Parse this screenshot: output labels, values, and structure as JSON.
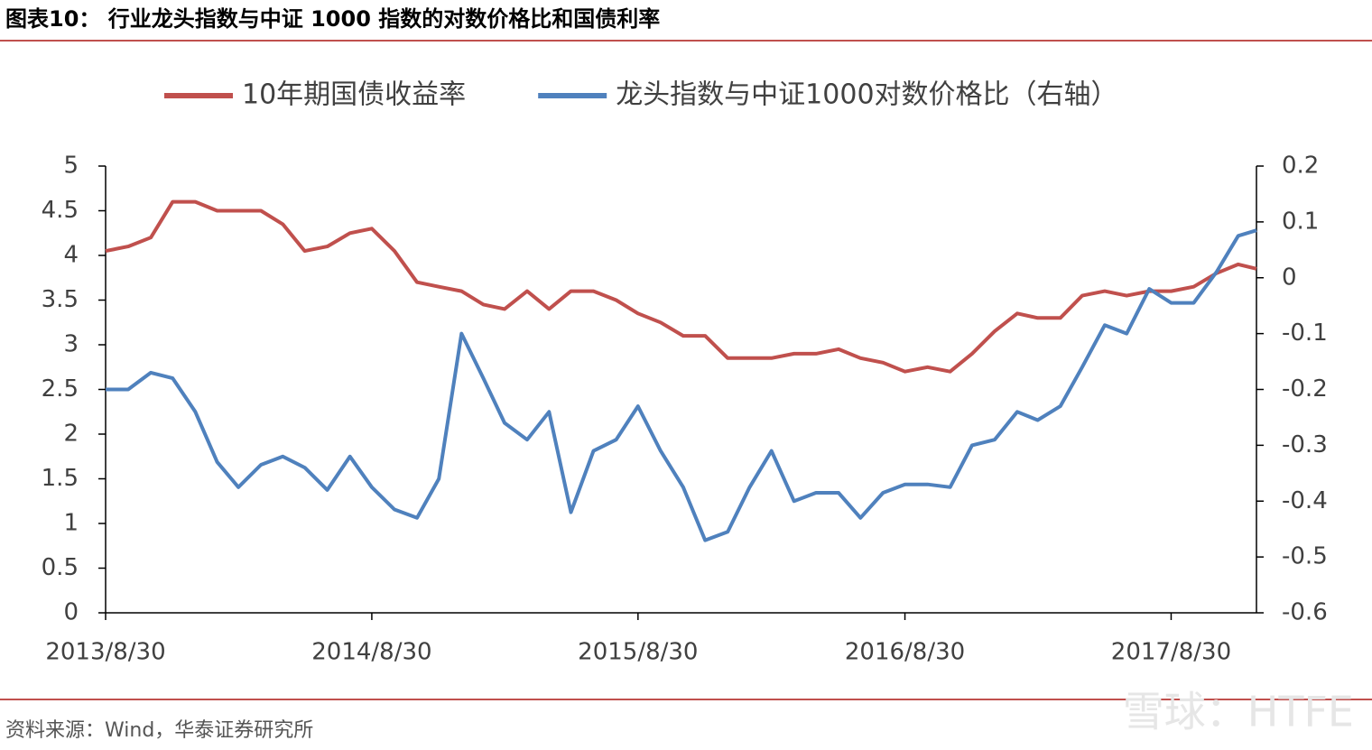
{
  "header": {
    "title": "图表10：  行业龙头指数与中证 1000 指数的对数价格比和国债利率"
  },
  "chart_data": {
    "type": "line",
    "x": [
      "2013/8/30",
      "2013/9/30",
      "2013/10/31",
      "2013/11/30",
      "2013/12/31",
      "2014/1/30",
      "2014/2/28",
      "2014/3/31",
      "2014/4/30",
      "2014/5/30",
      "2014/6/30",
      "2014/7/31",
      "2014/8/30",
      "2014/9/30",
      "2014/10/31",
      "2014/11/30",
      "2014/12/31",
      "2015/1/30",
      "2015/2/28",
      "2015/3/31",
      "2015/4/30",
      "2015/5/30",
      "2015/6/30",
      "2015/7/31",
      "2015/8/30",
      "2015/9/30",
      "2015/10/31",
      "2015/11/30",
      "2015/12/31",
      "2016/1/30",
      "2016/2/29",
      "2016/3/31",
      "2016/4/30",
      "2016/5/31",
      "2016/6/30",
      "2016/7/31",
      "2016/8/30",
      "2016/9/30",
      "2016/10/31",
      "2016/11/30",
      "2016/12/31",
      "2017/1/31",
      "2017/2/28",
      "2017/3/31",
      "2017/4/30",
      "2017/5/31",
      "2017/6/30",
      "2017/7/31",
      "2017/8/30",
      "2017/9/30",
      "2017/10/31",
      "2017/11/30",
      "2017/12/25"
    ],
    "series": [
      {
        "name": "10年期国债收益率",
        "color": "#c0504d",
        "axis": "y",
        "values": [
          4.05,
          4.1,
          4.2,
          4.6,
          4.6,
          4.5,
          4.5,
          4.5,
          4.35,
          4.05,
          4.1,
          4.25,
          4.3,
          4.05,
          3.7,
          3.65,
          3.6,
          3.45,
          3.4,
          3.6,
          3.4,
          3.6,
          3.6,
          3.5,
          3.35,
          3.25,
          3.1,
          3.1,
          2.85,
          2.85,
          2.85,
          2.9,
          2.9,
          2.95,
          2.85,
          2.8,
          2.7,
          2.75,
          2.7,
          2.9,
          3.15,
          3.35,
          3.3,
          3.3,
          3.55,
          3.6,
          3.55,
          3.6,
          3.6,
          3.65,
          3.8,
          3.9,
          3.85
        ]
      },
      {
        "name": "龙头指数与中证1000对数价格比（右轴）",
        "color": "#4f81bd",
        "axis": "y2",
        "values": [
          -0.2,
          -0.2,
          -0.17,
          -0.18,
          -0.24,
          -0.33,
          -0.375,
          -0.335,
          -0.32,
          -0.34,
          -0.38,
          -0.32,
          -0.375,
          -0.415,
          -0.43,
          -0.36,
          -0.1,
          -0.18,
          -0.26,
          -0.29,
          -0.24,
          -0.42,
          -0.31,
          -0.29,
          -0.23,
          -0.31,
          -0.375,
          -0.47,
          -0.455,
          -0.375,
          -0.31,
          -0.4,
          -0.385,
          -0.385,
          -0.43,
          -0.385,
          -0.37,
          -0.37,
          -0.375,
          -0.3,
          -0.29,
          -0.24,
          -0.255,
          -0.23,
          -0.16,
          -0.085,
          -0.1,
          -0.02,
          -0.045,
          -0.045,
          0.01,
          0.075,
          0.085
        ]
      }
    ],
    "xlim": [
      "2013/8/30",
      "2017/12/25"
    ],
    "xticks": [
      "2013/8/30",
      "2014/8/30",
      "2015/8/30",
      "2016/8/30",
      "2017/8/30"
    ],
    "ylim": [
      0,
      5
    ],
    "yticks": [
      0,
      0.5,
      1,
      1.5,
      2,
      2.5,
      3,
      3.5,
      4,
      4.5,
      5
    ],
    "y2lim": [
      -0.6,
      0.2
    ],
    "y2ticks": [
      -0.6,
      -0.5,
      -0.4,
      -0.3,
      -0.2,
      -0.1,
      0,
      0.1,
      0.2
    ],
    "grid": false,
    "legend": "top"
  },
  "footer": {
    "source": "资料来源：Wind，华泰证券研究所",
    "watermark": "雪球：HTFE"
  }
}
